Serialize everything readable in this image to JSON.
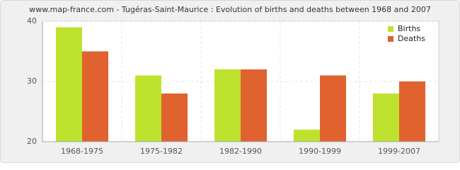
{
  "chart_data": {
    "type": "bar",
    "title": "www.map-france.com - Tugéras-Saint-Maurice : Evolution of births and deaths between 1968 and 2007",
    "categories": [
      "1968-1975",
      "1975-1982",
      "1982-1990",
      "1990-1999",
      "1999-2007"
    ],
    "series": [
      {
        "name": "Births",
        "color": "#bde22e",
        "values": [
          39,
          31,
          32,
          22,
          28
        ]
      },
      {
        "name": "Deaths",
        "color": "#e0622e",
        "values": [
          35,
          28,
          32,
          31,
          30
        ]
      }
    ],
    "ylim": [
      20,
      40
    ],
    "yticks": [
      20,
      30,
      40
    ],
    "grid": true,
    "legend": "top-right"
  }
}
